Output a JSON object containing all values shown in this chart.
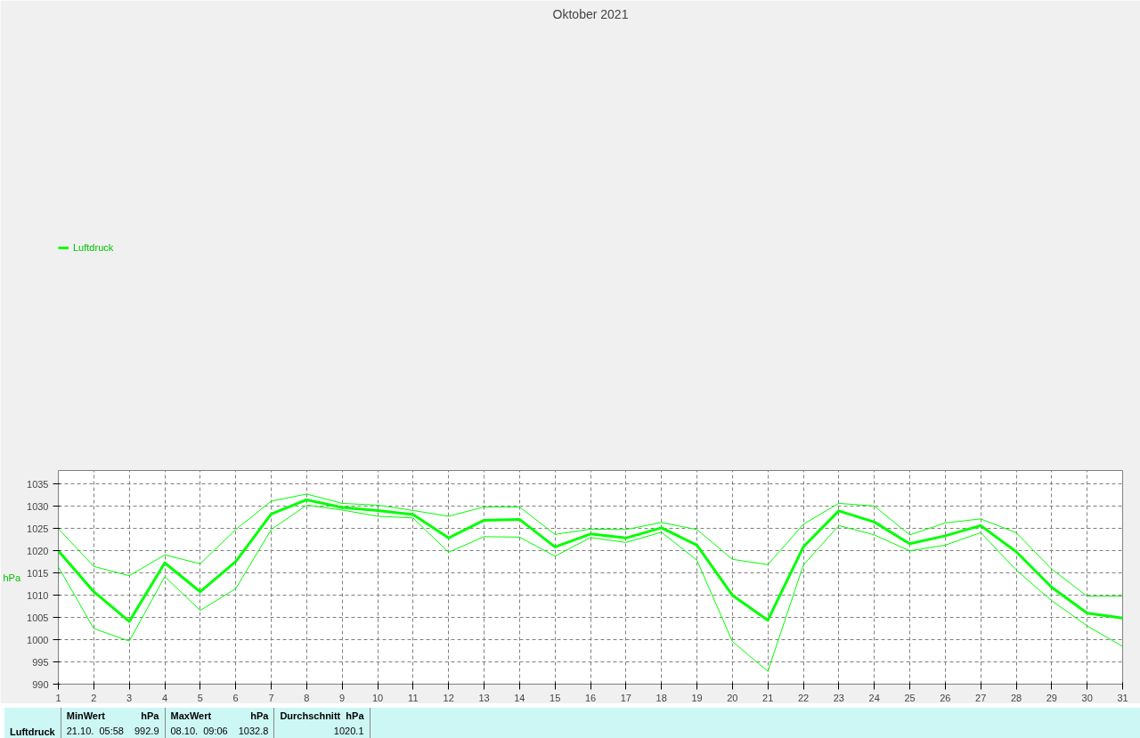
{
  "chart_data": {
    "type": "line",
    "title": "Oktober 2021",
    "ylabel": "hPa",
    "x": [
      1,
      2,
      3,
      4,
      5,
      6,
      7,
      8,
      9,
      10,
      11,
      12,
      13,
      14,
      15,
      16,
      17,
      18,
      19,
      20,
      21,
      22,
      23,
      24,
      25,
      26,
      27,
      28,
      29,
      30,
      31
    ],
    "series": [
      {
        "name": "Luftdruck",
        "color": "#00ff00",
        "values": [
          1020.0,
          1010.8,
          1004.1,
          1017.3,
          1010.8,
          1017.6,
          1028.3,
          1031.5,
          1029.8,
          1029.1,
          1028.2,
          1022.9,
          1026.9,
          1027.1,
          1020.9,
          1023.8,
          1022.9,
          1025.2,
          1021.3,
          1010.0,
          1004.4,
          1020.9,
          1029.0,
          1026.5,
          1021.6,
          1023.4,
          1025.7,
          1019.8,
          1011.8,
          1006.0,
          1004.9
        ]
      },
      {
        "color": "#00ff00",
        "values": [
          1025.0,
          1016.5,
          1014.4,
          1019.1,
          1017.1,
          1024.8,
          1031.2,
          1032.8,
          1030.7,
          1030.3,
          1029.1,
          1027.8,
          1029.9,
          1029.9,
          1023.7,
          1024.9,
          1024.8,
          1026.4,
          1024.8,
          1018.1,
          1016.9,
          1026.0,
          1030.7,
          1030.1,
          1023.6,
          1026.3,
          1027.2,
          1024.1,
          1015.9,
          1009.8,
          1009.8
        ]
      },
      {
        "color": "#00ff00",
        "values": [
          1016.4,
          1002.5,
          999.7,
          1014.2,
          1006.6,
          1011.5,
          1024.8,
          1030.3,
          1029.2,
          1027.8,
          1027.4,
          1019.7,
          1023.2,
          1023.1,
          1018.8,
          1023.0,
          1021.9,
          1024.2,
          1017.9,
          999.6,
          992.9,
          1016.8,
          1025.7,
          1023.6,
          1020.0,
          1021.3,
          1024.1,
          1015.7,
          1008.8,
          1003.1,
          998.5
        ]
      }
    ],
    "xlim": [
      1,
      31
    ],
    "ylim": [
      990,
      1038.1
    ],
    "xticks": [
      1,
      2,
      3,
      4,
      5,
      6,
      7,
      8,
      9,
      10,
      11,
      12,
      13,
      14,
      15,
      16,
      17,
      18,
      19,
      20,
      21,
      22,
      23,
      24,
      25,
      26,
      27,
      28,
      29,
      30,
      31
    ],
    "yticks": [
      990,
      995,
      1000,
      1005,
      1010,
      1015,
      1020,
      1025,
      1030,
      1035
    ],
    "grid": true,
    "legend": "top left",
    "line_style": "solid",
    "marker": "none",
    "annotations": [
      "Luftdruck",
      "MinWert",
      "hPa",
      "21.10.  05:58",
      "992.9",
      "MaxWert",
      "hPa",
      "08.10.  09:06",
      "1032.8",
      "Durchschnitt  hPa",
      "1020.1"
    ]
  }
}
